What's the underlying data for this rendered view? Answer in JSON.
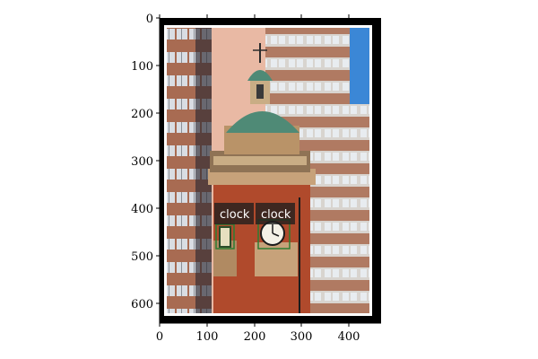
{
  "figure": {
    "x_ticks": [
      "0",
      "100",
      "200",
      "300",
      "400"
    ],
    "y_ticks": [
      "0",
      "100",
      "200",
      "300",
      "400",
      "500",
      "600"
    ],
    "xlim": [
      0,
      460
    ],
    "ylim": [
      0,
      640
    ]
  },
  "image": {
    "subject": "clock-tower-photo",
    "colors": {
      "border": "#000000",
      "inner_frame": "#ffffff",
      "sky": "#3b87d6",
      "brick": "#b04a2c",
      "stone": "#c7a27a",
      "copper_dome": "#4f8a76",
      "building_light": "#d9d6d2",
      "building_band": "#a86b52"
    }
  },
  "detections": [
    {
      "label": "clock"
    },
    {
      "label": "clock"
    }
  ]
}
